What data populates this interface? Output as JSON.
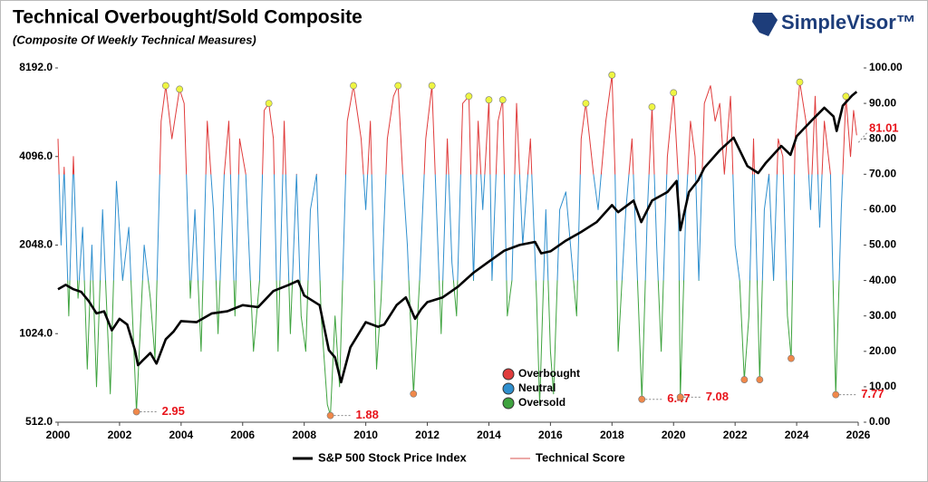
{
  "chart_data": {
    "type": "line",
    "title": "Technical Overbought/Sold Composite",
    "subtitle": "(Composite Of Weekly Technical Measures)",
    "logo": "SimpleVisor™",
    "xlim": [
      2000,
      2026
    ],
    "xticks": [
      2000,
      2002,
      2004,
      2006,
      2008,
      2010,
      2012,
      2014,
      2016,
      2018,
      2020,
      2022,
      2024,
      2026
    ],
    "y_scale": "log",
    "ylim": [
      512,
      8192
    ],
    "yticks": [
      {
        "value": 512,
        "label": "512.0"
      },
      {
        "value": 1024,
        "label": "1024.0"
      },
      {
        "value": 2048,
        "label": "2048.0"
      },
      {
        "value": 4096,
        "label": "4096.0"
      },
      {
        "value": 8192,
        "label": "8192.0"
      }
    ],
    "y2lim": [
      0,
      100
    ],
    "y2ticks": [
      {
        "value": 0,
        "label": "0.00"
      },
      {
        "value": 10,
        "label": "10.00"
      },
      {
        "value": 20,
        "label": "20.00"
      },
      {
        "value": 30,
        "label": "30.00"
      },
      {
        "value": 40,
        "label": "40.00"
      },
      {
        "value": 50,
        "label": "50.00"
      },
      {
        "value": 60,
        "label": "60.00"
      },
      {
        "value": 70,
        "label": "70.00"
      },
      {
        "value": 80,
        "label": "80.00"
      },
      {
        "value": 90,
        "label": "90.00"
      },
      {
        "value": 100,
        "label": "100.00"
      }
    ],
    "series": [
      {
        "name": "S&P 500 Stock Price Index",
        "color": "#000000",
        "x": [
          2000.0,
          2000.25,
          2000.5,
          2000.75,
          2001.0,
          2001.25,
          2001.5,
          2001.75,
          2002.0,
          2002.25,
          2002.5,
          2002.6,
          2002.75,
          2003.0,
          2003.2,
          2003.5,
          2003.75,
          2004.0,
          2004.5,
          2005.0,
          2005.5,
          2006.0,
          2006.5,
          2007.0,
          2007.5,
          2007.8,
          2008.0,
          2008.5,
          2008.8,
          2009.0,
          2009.2,
          2009.5,
          2010.0,
          2010.4,
          2010.6,
          2011.0,
          2011.3,
          2011.6,
          2011.8,
          2012.0,
          2012.5,
          2013.0,
          2013.5,
          2014.0,
          2014.5,
          2015.0,
          2015.5,
          2015.7,
          2016.0,
          2016.5,
          2017.0,
          2017.5,
          2018.0,
          2018.2,
          2018.7,
          2018.95,
          2019.3,
          2019.8,
          2020.1,
          2020.22,
          2020.5,
          2020.8,
          2021.0,
          2021.5,
          2021.95,
          2022.4,
          2022.75,
          2023.0,
          2023.5,
          2023.8,
          2024.0,
          2024.5,
          2024.9,
          2025.2,
          2025.3,
          2025.5,
          2025.8,
          2025.95
        ],
        "values": [
          1450,
          1500,
          1450,
          1420,
          1320,
          1200,
          1220,
          1050,
          1150,
          1100,
          900,
          800,
          830,
          880,
          810,
          980,
          1040,
          1130,
          1120,
          1200,
          1220,
          1280,
          1260,
          1430,
          1500,
          1550,
          1380,
          1280,
          900,
          850,
          700,
          920,
          1120,
          1080,
          1100,
          1280,
          1360,
          1150,
          1240,
          1310,
          1360,
          1480,
          1650,
          1800,
          1960,
          2050,
          2100,
          1920,
          1950,
          2120,
          2270,
          2450,
          2800,
          2650,
          2900,
          2450,
          2900,
          3100,
          3380,
          2300,
          3100,
          3400,
          3750,
          4300,
          4750,
          3800,
          3600,
          3900,
          4450,
          4150,
          4800,
          5450,
          6000,
          5600,
          5000,
          6100,
          6600,
          6800
        ]
      },
      {
        "name": "Technical Score",
        "color": "#d9534f",
        "axis": "y2",
        "x": [
          2000.0,
          2000.1,
          2000.2,
          2000.35,
          2000.5,
          2000.65,
          2000.8,
          2000.95,
          2001.1,
          2001.25,
          2001.45,
          2001.7,
          2001.9,
          2002.1,
          2002.3,
          2002.55,
          2002.8,
          2003.0,
          2003.15,
          2003.35,
          2003.5,
          2003.7,
          2003.95,
          2004.1,
          2004.3,
          2004.45,
          2004.65,
          2004.85,
          2005.05,
          2005.2,
          2005.4,
          2005.55,
          2005.75,
          2005.9,
          2006.1,
          2006.35,
          2006.55,
          2006.7,
          2006.85,
          2007.0,
          2007.15,
          2007.35,
          2007.55,
          2007.75,
          2007.9,
          2008.05,
          2008.2,
          2008.4,
          2008.55,
          2008.75,
          2008.85,
          2009.0,
          2009.15,
          2009.4,
          2009.6,
          2009.85,
          2010.0,
          2010.15,
          2010.35,
          2010.5,
          2010.7,
          2010.9,
          2011.05,
          2011.2,
          2011.35,
          2011.55,
          2011.75,
          2011.95,
          2012.15,
          2012.3,
          2012.45,
          2012.65,
          2012.8,
          2012.95,
          2013.15,
          2013.35,
          2013.5,
          2013.65,
          2013.8,
          2014.0,
          2014.1,
          2014.3,
          2014.45,
          2014.6,
          2014.75,
          2014.9,
          2015.1,
          2015.35,
          2015.55,
          2015.65,
          2015.85,
          2016.0,
          2016.1,
          2016.3,
          2016.5,
          2016.65,
          2016.85,
          2017.0,
          2017.15,
          2017.4,
          2017.55,
          2017.8,
          2018.0,
          2018.1,
          2018.2,
          2018.45,
          2018.65,
          2018.85,
          2018.97,
          2019.15,
          2019.3,
          2019.45,
          2019.6,
          2019.8,
          2020.0,
          2020.15,
          2020.22,
          2020.4,
          2020.55,
          2020.7,
          2020.82,
          2021.0,
          2021.2,
          2021.35,
          2021.5,
          2021.65,
          2021.85,
          2022.0,
          2022.15,
          2022.3,
          2022.45,
          2022.6,
          2022.8,
          2022.95,
          2023.1,
          2023.25,
          2023.4,
          2023.55,
          2023.7,
          2023.82,
          2023.95,
          2024.1,
          2024.3,
          2024.45,
          2024.6,
          2024.75,
          2024.9,
          2025.1,
          2025.27,
          2025.45,
          2025.6,
          2025.75,
          2025.85,
          2025.95
        ],
        "values": [
          80,
          50,
          72,
          30,
          75,
          35,
          55,
          15,
          50,
          10,
          60,
          8,
          68,
          40,
          55,
          2.95,
          50,
          35,
          18,
          85,
          95,
          80,
          94,
          90,
          35,
          60,
          20,
          85,
          60,
          25,
          70,
          85,
          30,
          80,
          70,
          20,
          40,
          88,
          90,
          80,
          20,
          85,
          25,
          70,
          30,
          20,
          60,
          70,
          30,
          5,
          1.88,
          30,
          10,
          85,
          95,
          80,
          60,
          85,
          15,
          35,
          80,
          92,
          95,
          70,
          50,
          8,
          40,
          80,
          95,
          60,
          25,
          80,
          45,
          30,
          90,
          92,
          40,
          85,
          60,
          91,
          40,
          85,
          91,
          30,
          40,
          90,
          50,
          80,
          35,
          5,
          60,
          20,
          8,
          60,
          65,
          50,
          30,
          80,
          90,
          70,
          60,
          85,
          98,
          70,
          20,
          60,
          80,
          35,
          6.47,
          60,
          89,
          50,
          20,
          75,
          93,
          70,
          7.08,
          60,
          85,
          75,
          40,
          90,
          95,
          85,
          90,
          70,
          92,
          50,
          40,
          12,
          30,
          80,
          12,
          60,
          70,
          40,
          80,
          75,
          30,
          18,
          80,
          96,
          85,
          60,
          92,
          55,
          85,
          70,
          7.77,
          60,
          92,
          75,
          88,
          81.01
        ]
      }
    ],
    "color_bands": [
      {
        "name": "Overbought",
        "color": "#e03c3c",
        "min": 70
      },
      {
        "name": "Neutral",
        "color": "#2f8fce",
        "min": 40
      },
      {
        "name": "Oversold",
        "color": "#3fa33f",
        "min": 0
      }
    ],
    "overbought_markers": {
      "color": "#eef542",
      "x": [
        2003.5,
        2003.95,
        2006.85,
        2009.6,
        2011.05,
        2012.15,
        2013.35,
        2014.0,
        2014.45,
        2017.15,
        2018.0,
        2019.3,
        2020.0,
        2024.1,
        2025.6
      ],
      "values": [
        95,
        94,
        90,
        95,
        95,
        95,
        92,
        91,
        91,
        90,
        98,
        89,
        93,
        96,
        92
      ]
    },
    "oversold_markers": {
      "color": "#f0884a",
      "x": [
        2011.55,
        2022.3,
        2022.8,
        2023.82
      ],
      "values": [
        8,
        12,
        12,
        18
      ]
    },
    "oversold_labels": {
      "color": "#f0884a",
      "label_color": "#e8141b",
      "x": [
        2002.55,
        2008.85,
        2018.97,
        2020.22,
        2025.27
      ],
      "values": [
        2.95,
        1.88,
        6.47,
        7.08,
        7.77
      ]
    }
  }
}
